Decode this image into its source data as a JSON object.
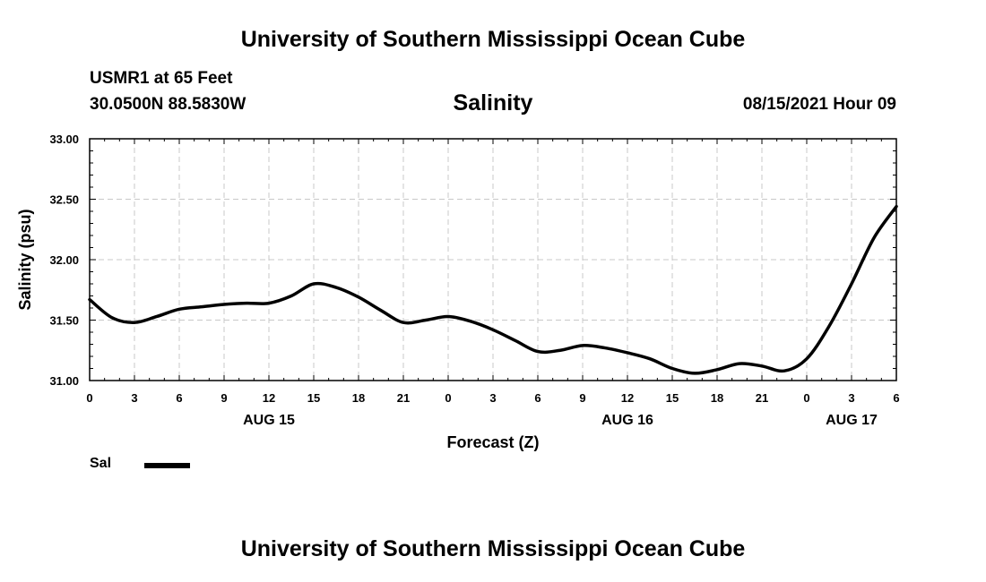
{
  "header": {
    "main_title": "University of Southern Mississippi Ocean Cube",
    "station": "USMR1 at 65 Feet",
    "coords": "30.0500N  88.5830W",
    "timestamp": "08/15/2021 Hour 09",
    "footer_title": "University of Southern Mississippi Ocean Cube"
  },
  "legend": {
    "label": "Sal",
    "color": "#000000"
  },
  "chart_data": {
    "type": "line",
    "title": "Salinity",
    "xlabel": "Forecast (Z)",
    "ylabel": "Salinity (psu)",
    "xlim": [
      0,
      54
    ],
    "ylim": [
      31.0,
      33.0
    ],
    "grid": true,
    "x_ticks": [
      0,
      3,
      6,
      9,
      12,
      15,
      18,
      21,
      24,
      27,
      30,
      33,
      36,
      39,
      42,
      45,
      48,
      51,
      54
    ],
    "x_tick_labels": [
      "0",
      "3",
      "6",
      "9",
      "12",
      "15",
      "18",
      "21",
      "0",
      "3",
      "6",
      "9",
      "12",
      "15",
      "18",
      "21",
      "0",
      "3",
      "6"
    ],
    "y_ticks": [
      31.0,
      31.5,
      32.0,
      32.5,
      33.0
    ],
    "y_tick_labels": [
      "31.00",
      "31.50",
      "32.00",
      "32.50",
      "33.00"
    ],
    "day_labels": [
      {
        "x": 12,
        "label": "AUG 15"
      },
      {
        "x": 36,
        "label": "AUG 16"
      },
      {
        "x": 51,
        "label": "AUG 17"
      }
    ],
    "series": [
      {
        "name": "Sal",
        "color": "#000000",
        "x": [
          0,
          1.5,
          3,
          4.5,
          6,
          7.5,
          9,
          10.5,
          12,
          13.5,
          15,
          16.5,
          18,
          19.5,
          21,
          22.5,
          24,
          25.5,
          27,
          28.5,
          30,
          31.5,
          33,
          34.5,
          36,
          37.5,
          39,
          40.5,
          42,
          43.5,
          45,
          46.5,
          48,
          49.5,
          51,
          52.5,
          54
        ],
        "values": [
          31.67,
          31.52,
          31.48,
          31.53,
          31.59,
          31.61,
          31.63,
          31.64,
          31.64,
          31.7,
          31.8,
          31.77,
          31.69,
          31.58,
          31.48,
          31.5,
          31.53,
          31.49,
          31.42,
          31.33,
          31.24,
          31.25,
          31.29,
          31.27,
          31.23,
          31.18,
          31.1,
          31.06,
          31.09,
          31.14,
          31.12,
          31.08,
          31.18,
          31.45,
          31.8,
          32.18,
          32.44
        ]
      }
    ]
  }
}
